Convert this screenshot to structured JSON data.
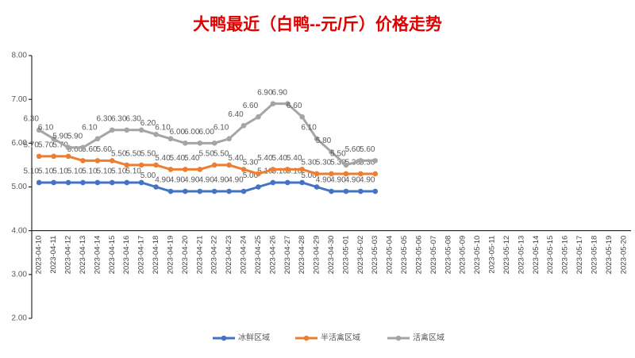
{
  "chart_data": {
    "type": "line",
    "title": "大鸭最近（白鸭--元/斤）价格走势",
    "categories": [
      "2023-04-10",
      "2023-04-11",
      "2023-04-12",
      "2023-04-13",
      "2023-04-14",
      "2023-04-15",
      "2023-04-16",
      "2023-04-17",
      "2023-04-18",
      "2023-04-19",
      "2023-04-20",
      "2023-04-21",
      "2023-04-22",
      "2023-04-23",
      "2023-04-24",
      "2023-04-25",
      "2023-04-26",
      "2023-04-27",
      "2023-04-28",
      "2023-04-29",
      "2023-04-30",
      "2023-05-01",
      "2023-05-02",
      "2023-05-03",
      "2023-05-04",
      "2023-05-05",
      "2023-05-06",
      "2023-05-07",
      "2023-05-08",
      "2023-05-09",
      "2023-05-10",
      "2023-05-11",
      "2023-05-12",
      "2023-05-13",
      "2023-05-14",
      "2023-05-15",
      "2023-05-16",
      "2023-05-17",
      "2023-05-18",
      "2023-05-19",
      "2023-05-20"
    ],
    "series": [
      {
        "name": "冰鲜区域",
        "color": "#4472c4",
        "values": [
          5.1,
          5.1,
          5.1,
          5.1,
          5.1,
          5.1,
          5.1,
          5.1,
          5.0,
          4.9,
          4.9,
          4.9,
          4.9,
          4.9,
          4.9,
          5.0,
          5.1,
          5.1,
          5.1,
          5.0,
          4.9,
          4.9,
          4.9,
          4.9,
          null,
          null,
          null,
          null,
          null,
          null,
          null,
          null,
          null,
          null,
          null,
          null,
          null,
          null,
          null,
          null,
          null
        ],
        "value_labels": [
          "5.10",
          "5.10",
          "5.10",
          "5.10",
          "5.10",
          "5.10",
          "5.10",
          "5.10",
          "5.00",
          "4.90",
          "4.90",
          "4.90",
          "4.90",
          "4.90",
          "4.90",
          "5.00",
          "5.10",
          "5.10",
          "5.10",
          "5.00",
          "4.90",
          "4.90",
          "4.90",
          "4.90",
          null,
          null,
          null,
          null,
          null,
          null,
          null,
          null,
          null,
          null,
          null,
          null,
          null,
          null,
          null,
          null,
          null
        ]
      },
      {
        "name": "半活禽区域",
        "color": "#ed7d31",
        "values": [
          5.7,
          5.7,
          5.7,
          5.6,
          5.6,
          5.6,
          5.5,
          5.5,
          5.5,
          5.4,
          5.4,
          5.4,
          5.5,
          5.5,
          5.4,
          5.3,
          5.4,
          5.4,
          5.4,
          5.3,
          5.3,
          5.3,
          5.3,
          5.3,
          null,
          null,
          null,
          null,
          null,
          null,
          null,
          null,
          null,
          null,
          null,
          null,
          null,
          null,
          null,
          null,
          null
        ],
        "value_labels": [
          "5.70",
          "5.70",
          "5.70",
          "5.60",
          "5.60",
          "5.60",
          "5.50",
          "5.50",
          "5.50",
          "5.40",
          "5.40",
          "5.40",
          "5.50",
          "5.50",
          "5.40",
          "5.30",
          "5.40",
          "5.40",
          "5.40",
          "5.30",
          "5.30",
          "5.30",
          "5.30",
          "5.30",
          null,
          null,
          null,
          null,
          null,
          null,
          null,
          null,
          null,
          null,
          null,
          null,
          null,
          null,
          null,
          null,
          null
        ]
      },
      {
        "name": "活禽区域",
        "color": "#a5a5a5",
        "values": [
          6.3,
          6.1,
          5.9,
          5.9,
          6.1,
          6.3,
          6.3,
          6.3,
          6.2,
          6.1,
          6.0,
          6.0,
          6.0,
          6.1,
          6.4,
          6.6,
          6.9,
          6.9,
          6.6,
          6.1,
          5.8,
          5.5,
          5.6,
          5.6,
          null,
          null,
          null,
          null,
          null,
          null,
          null,
          null,
          null,
          null,
          null,
          null,
          null,
          null,
          null,
          null,
          null
        ],
        "value_labels": [
          "6.30",
          "6.10",
          "5.90",
          "5.90",
          "6.10",
          "6.30",
          "6.30",
          "6.30",
          "6.20",
          "6.10",
          "6.00",
          "6.00",
          "6.00",
          "6.10",
          "6.40",
          "6.60",
          "6.90",
          "6.90",
          "6.60",
          "6.10",
          "5.80",
          "5.50",
          "5.60",
          "5.60",
          null,
          null,
          null,
          null,
          null,
          null,
          null,
          null,
          null,
          null,
          null,
          null,
          null,
          null,
          null,
          null,
          null
        ]
      }
    ],
    "ylim": [
      2,
      8
    ],
    "yticks": [
      {
        "value": 2,
        "label": "2.00"
      },
      {
        "value": 3,
        "label": "3.00"
      },
      {
        "value": 4,
        "label": "4.00"
      },
      {
        "value": 5,
        "label": "5.00"
      },
      {
        "value": 6,
        "label": "6.00"
      },
      {
        "value": 7,
        "label": "7.00"
      },
      {
        "value": 8,
        "label": "8.00"
      }
    ],
    "xaxis_crosses": 4,
    "legend": "bottom"
  }
}
